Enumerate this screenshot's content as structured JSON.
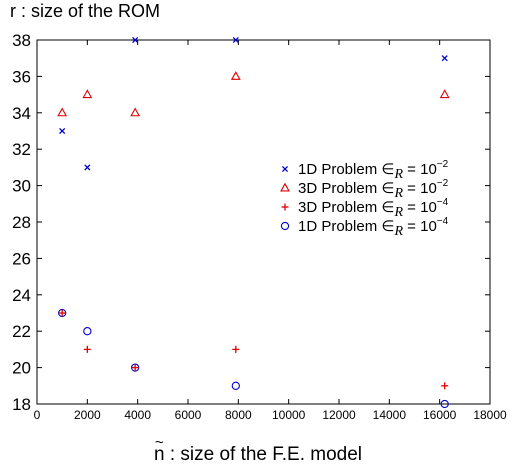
{
  "chart_data": {
    "type": "scatter",
    "ylabel": "r : size of the ROM",
    "xlabel_tilde_char": "n",
    "xlabel_rest": " : size of the F.E. model",
    "xlim": [
      0,
      18000
    ],
    "ylim": [
      18,
      38
    ],
    "x_ticks": [
      0,
      2000,
      4000,
      6000,
      8000,
      10000,
      12000,
      14000,
      16000,
      18000
    ],
    "y_ticks": [
      18,
      20,
      22,
      24,
      26,
      28,
      30,
      32,
      34,
      36,
      38
    ],
    "grid": false,
    "legend_position": "right",
    "series": [
      {
        "name_prefix": "1D Problem ",
        "name_epsilon": "∈",
        "name_sub": "R",
        "name_equals": " = 10",
        "name_exp": "−2",
        "marker": "x",
        "color": "#0000cc",
        "points": [
          [
            1000,
            33
          ],
          [
            2000,
            31
          ],
          [
            3900,
            38
          ],
          [
            7900,
            38
          ],
          [
            16200,
            37
          ]
        ]
      },
      {
        "name_prefix": "3D Problem ",
        "name_epsilon": "∈",
        "name_sub": "R",
        "name_equals": " = 10",
        "name_exp": "−2",
        "marker": "triangle",
        "color": "#dd0000",
        "points": [
          [
            1000,
            34
          ],
          [
            2000,
            35
          ],
          [
            3900,
            34
          ],
          [
            7900,
            36
          ],
          [
            16200,
            35
          ]
        ]
      },
      {
        "name_prefix": "3D Problem ",
        "name_epsilon": "∈",
        "name_sub": "R",
        "name_equals": " = 10",
        "name_exp": "−4",
        "marker": "plus",
        "color": "#dd0000",
        "points": [
          [
            1000,
            23
          ],
          [
            2000,
            21
          ],
          [
            3900,
            20
          ],
          [
            7900,
            21
          ],
          [
            16200,
            19
          ]
        ]
      },
      {
        "name_prefix": "1D Problem ",
        "name_epsilon": "∈",
        "name_sub": "R",
        "name_equals": " = 10",
        "name_exp": "−4",
        "marker": "circle",
        "color": "#0000cc",
        "points": [
          [
            1000,
            23
          ],
          [
            2000,
            22
          ],
          [
            3900,
            20
          ],
          [
            7900,
            19
          ],
          [
            16200,
            18
          ]
        ]
      }
    ]
  }
}
